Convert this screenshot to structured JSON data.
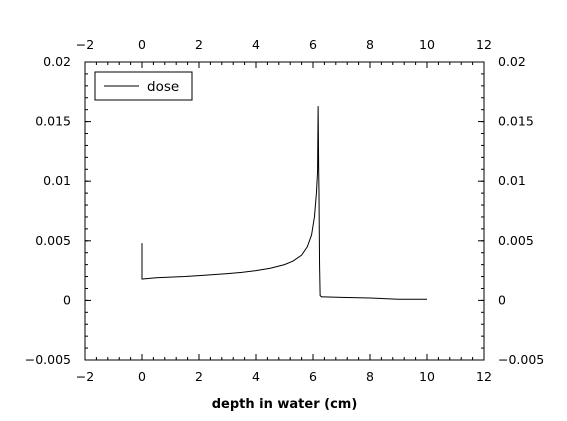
{
  "chart_data": {
    "type": "line",
    "title": "",
    "xlabel": "depth in water (cm)",
    "ylabel": "",
    "xlim": [
      -2,
      12
    ],
    "ylim": [
      -0.005,
      0.02
    ],
    "x_ticks": [
      -2,
      0,
      2,
      4,
      6,
      8,
      10,
      12
    ],
    "x_tick_labels": [
      "−2",
      "0",
      "2",
      "4",
      "6",
      "8",
      "10",
      "12"
    ],
    "y_ticks": [
      -0.005,
      0,
      0.005,
      0.01,
      0.015,
      0.02
    ],
    "y_tick_labels": [
      "−0.005",
      "0",
      "0.005",
      "0.01",
      "0.015",
      "0.02"
    ],
    "grid": false,
    "legend_position": "top-left",
    "mirrored_axes": true,
    "series": [
      {
        "name": "dose",
        "color": "#000000",
        "x": [
          0,
          0,
          0.02,
          0.5,
          1,
          1.5,
          2,
          2.5,
          3,
          3.5,
          4,
          4.5,
          5,
          5.3,
          5.6,
          5.8,
          5.95,
          6.05,
          6.12,
          6.16,
          6.18,
          6.2,
          6.21,
          6.22,
          6.23,
          6.25,
          6.3,
          6.4,
          7,
          8,
          9,
          10
        ],
        "y": [
          0.0048,
          0.0018,
          0.0018,
          0.0019,
          0.00195,
          0.002,
          0.00208,
          0.00216,
          0.00225,
          0.00235,
          0.0025,
          0.0027,
          0.003,
          0.0033,
          0.0038,
          0.0045,
          0.0055,
          0.007,
          0.009,
          0.0108,
          0.0163,
          0.0108,
          0.009,
          0.006,
          0.003,
          0.0004,
          0.0003,
          0.0003,
          0.00025,
          0.0002,
          0.0001,
          0.0001
        ]
      }
    ]
  }
}
